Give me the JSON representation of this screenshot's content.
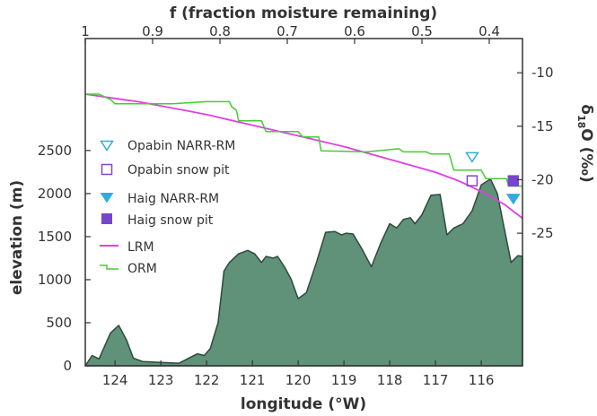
{
  "chart_data": {
    "type": "area",
    "top_axis": {
      "label": "f (fraction moisture remaining)",
      "ticks": [
        "1",
        "0.9",
        "0.8",
        "0.7",
        "0.6",
        "0.5",
        "0.4"
      ],
      "tick_values": [
        1,
        0.9,
        0.8,
        0.7,
        0.6,
        0.5,
        0.4
      ]
    },
    "bottom_axis": {
      "label": "longitude (°W)",
      "ticks": [
        "124",
        "123",
        "122",
        "121",
        "120",
        "119",
        "118",
        "117",
        "116"
      ],
      "tick_values": [
        124,
        123,
        122,
        121,
        120,
        119,
        118,
        117,
        116
      ],
      "xlim": [
        124.65,
        115.1
      ]
    },
    "left_axis": {
      "label": "elevation (m)",
      "ticks": [
        "0",
        "500",
        "1000",
        "1500",
        "2000",
        "2500"
      ],
      "tick_values": [
        0,
        500,
        1000,
        1500,
        2000,
        2500
      ],
      "ylim": [
        0,
        3800
      ]
    },
    "right_axis": {
      "label": "δ18O (‰)",
      "label_main": "δ",
      "label_sub": "18",
      "label_rest": "O (‰)",
      "ticks": [
        "-10",
        "-15",
        "-20",
        "-25"
      ],
      "tick_values": [
        -10,
        -15,
        -20,
        -25
      ],
      "ylim": [
        -37.4,
        -6.8
      ]
    },
    "elevation": {
      "x": [
        124.65,
        124.5,
        124.35,
        124.1,
        123.92,
        123.75,
        123.6,
        123.4,
        123.0,
        122.6,
        122.35,
        122.2,
        122.05,
        121.92,
        121.75,
        121.62,
        121.5,
        121.3,
        121.1,
        120.95,
        120.8,
        120.7,
        120.55,
        120.45,
        120.3,
        120.15,
        120.0,
        119.82,
        119.6,
        119.4,
        119.2,
        119.05,
        118.95,
        118.8,
        118.6,
        118.4,
        118.2,
        118.0,
        117.85,
        117.7,
        117.55,
        117.45,
        117.3,
        117.1,
        116.9,
        116.75,
        116.6,
        116.4,
        116.2,
        116.0,
        115.8,
        115.65,
        115.5,
        115.35,
        115.2,
        115.1
      ],
      "y": [
        0,
        120,
        80,
        380,
        470,
        300,
        90,
        50,
        40,
        30,
        100,
        140,
        120,
        200,
        500,
        1100,
        1200,
        1300,
        1340,
        1300,
        1200,
        1270,
        1250,
        1270,
        1150,
        1000,
        780,
        850,
        1200,
        1550,
        1560,
        1520,
        1540,
        1530,
        1350,
        1150,
        1420,
        1650,
        1600,
        1700,
        1720,
        1650,
        1750,
        1980,
        1990,
        1520,
        1600,
        1650,
        1800,
        2100,
        2170,
        2000,
        1600,
        1200,
        1280,
        1270
      ]
    },
    "series": [
      {
        "name": "LRM",
        "color": "#e040e0",
        "x": [
          124.65,
          124.0,
          123.5,
          123.0,
          122.5,
          122.0,
          121.5,
          121.0,
          120.5,
          120.0,
          119.5,
          119.0,
          118.5,
          118.0,
          117.5,
          117.0,
          116.5,
          116.0,
          115.5,
          115.1
        ],
        "y": [
          -12.0,
          -12.4,
          -12.7,
          -13.1,
          -13.5,
          -13.9,
          -14.4,
          -14.9,
          -15.4,
          -15.9,
          -16.4,
          -16.9,
          -17.5,
          -18.1,
          -18.7,
          -19.3,
          -20.1,
          -21.1,
          -22.3,
          -23.6
        ]
      },
      {
        "name": "ORM",
        "color": "#44cc33",
        "x": [
          124.65,
          124.35,
          124.1,
          124.0,
          123.0,
          122.75,
          122.0,
          121.5,
          121.45,
          121.35,
          121.3,
          120.8,
          120.7,
          120.0,
          119.9,
          119.55,
          119.5,
          118.5,
          117.8,
          117.7,
          117.2,
          117.1,
          116.7,
          116.6,
          116.0,
          115.9,
          115.45,
          115.4,
          115.1
        ],
        "y": [
          -12.0,
          -12.0,
          -12.5,
          -12.9,
          -12.9,
          -12.9,
          -12.7,
          -12.7,
          -13.2,
          -13.5,
          -14.5,
          -14.5,
          -15.5,
          -15.5,
          -16.0,
          -16.0,
          -17.3,
          -17.4,
          -17.1,
          -17.4,
          -17.4,
          -17.6,
          -17.6,
          -19.1,
          -19.1,
          -19.9,
          -19.9,
          -20.6,
          -20.6
        ]
      }
    ],
    "markers": [
      {
        "name": "Opabin NARR-RM",
        "shape": "triangle-down-open",
        "color": "#33aadd",
        "x": 116.2,
        "y": -17.9
      },
      {
        "name": "Opabin snow pit",
        "shape": "square-open",
        "color": "#8844cc",
        "x": 116.2,
        "y": -20.1
      },
      {
        "name": "Haig NARR-RM",
        "shape": "triangle-down-filled",
        "color": "#33aadd",
        "x": 115.3,
        "y": -21.8
      },
      {
        "name": "Haig snow pit",
        "shape": "square-filled",
        "color": "#7744cc",
        "x": 115.3,
        "y": -20.1
      }
    ],
    "legend": {
      "position": "left",
      "entries": [
        "Opabin NARR-RM",
        "Opabin snow pit",
        "Haig NARR-RM",
        "Haig snow pit",
        "LRM",
        "ORM"
      ]
    },
    "colors": {
      "terrain_fill": "#5f9278",
      "terrain_stroke": "#2f4a3c",
      "axis": "#333333"
    }
  }
}
